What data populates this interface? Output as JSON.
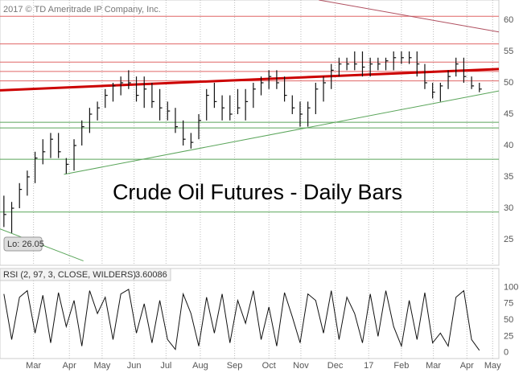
{
  "chart_data": [
    {
      "type": "ohlc",
      "title": "Crude Oil Futures - Daily Bars",
      "copyright": "2017 © TD Ameritrade IP Company, Inc.",
      "low_label": "Lo: 26.05",
      "color": "#111111",
      "xlim": [
        -0.5,
        63.5
      ],
      "ylim": [
        20.9,
        63.2
      ],
      "yticks": [
        25,
        30,
        35,
        40,
        45,
        50,
        55,
        60
      ],
      "grid": true,
      "high": [
        32,
        31,
        34,
        36,
        39,
        41,
        42,
        42,
        38,
        41,
        44,
        46,
        47,
        49,
        50,
        51,
        52,
        51,
        51,
        50,
        49,
        47,
        46,
        44,
        42,
        45,
        49,
        50,
        48,
        48,
        49,
        49,
        50,
        51,
        52,
        52,
        51,
        48,
        47,
        47,
        50,
        51,
        53,
        54,
        54,
        55,
        55,
        54,
        54,
        54,
        55,
        55,
        55,
        55,
        53,
        50,
        50,
        52,
        54,
        54,
        51,
        50
      ],
      "low": [
        27,
        26.05,
        30,
        32,
        34,
        37,
        38,
        38,
        35.5,
        36,
        40,
        42,
        44,
        46,
        47,
        48,
        49,
        47,
        46,
        46,
        44,
        44,
        42,
        40,
        39.5,
        41,
        44,
        46,
        44,
        44,
        45,
        44,
        46,
        48,
        49,
        49,
        47,
        45,
        43,
        43,
        45,
        47,
        49,
        51,
        52,
        52,
        51,
        51,
        52,
        52,
        52,
        53,
        53,
        51,
        49,
        47.5,
        47,
        49,
        51,
        50,
        49,
        48.5
      ],
      "close": [
        29,
        30,
        33,
        35,
        38,
        39,
        41,
        39,
        37,
        40,
        43,
        45,
        46,
        48,
        49.5,
        50,
        50,
        48,
        49,
        47,
        46,
        45.5,
        43,
        41,
        40.5,
        44,
        48,
        47,
        46,
        45,
        46,
        47,
        49,
        50,
        51,
        50,
        48,
        46,
        45,
        46,
        49,
        50,
        52,
        53,
        53,
        53,
        52.5,
        53,
        53,
        53.5,
        54,
        54,
        54,
        53,
        50,
        48.5,
        49.5,
        51,
        53,
        51,
        49.5,
        49
      ],
      "levels": [
        {
          "value": 60.6,
          "color": "#e06666"
        },
        {
          "value": 56.2,
          "color": "#e06666"
        },
        {
          "value": 53.3,
          "color": "#e06666"
        },
        {
          "value": 51.8,
          "color": "#e06666"
        },
        {
          "value": 50.3,
          "color": "#e06666"
        },
        {
          "value": 43.7,
          "color": "#5aa55a"
        },
        {
          "value": 42.8,
          "color": "#5aa55a"
        },
        {
          "value": 37.8,
          "color": "#5aa55a"
        },
        {
          "value": 29.4,
          "color": "#5aa55a"
        }
      ],
      "trendlines": [
        {
          "x": [
            -0.5,
            63.5
          ],
          "y": [
            48.8,
            52.2
          ],
          "color": "#cc0000",
          "width": 3
        },
        {
          "x": [
            40.4,
            63.5
          ],
          "y": [
            63.2,
            58.1
          ],
          "color": "#b05060",
          "width": 1
        },
        {
          "x": [
            7.7,
            63.5
          ],
          "y": [
            35.4,
            48.7
          ],
          "color": "#5aa55a",
          "width": 1
        },
        {
          "x": [
            -0.5,
            10.2
          ],
          "y": [
            26.7,
            21.6
          ],
          "color": "#5aa55a",
          "width": 1
        }
      ]
    },
    {
      "type": "line",
      "title": "RSI (2, 97, 3, CLOSE, WILDERS)",
      "readout": "3.60086",
      "color": "#111111",
      "xlim": [
        -0.5,
        63.5
      ],
      "ylim": [
        -9,
        129
      ],
      "yticks": [
        0,
        25,
        50,
        75,
        100
      ],
      "xticks": [
        {
          "value": 3.8,
          "label": "Mar"
        },
        {
          "value": 8.4,
          "label": "Apr"
        },
        {
          "value": 12.6,
          "label": "May"
        },
        {
          "value": 16.7,
          "label": "Jun"
        },
        {
          "value": 20.8,
          "label": "Jul"
        },
        {
          "value": 25.2,
          "label": "Aug"
        },
        {
          "value": 29.6,
          "label": "Sep"
        },
        {
          "value": 34,
          "label": "Oct"
        },
        {
          "value": 38.1,
          "label": "Nov"
        },
        {
          "value": 42.5,
          "label": "Dec"
        },
        {
          "value": 46.8,
          "label": "17"
        },
        {
          "value": 51,
          "label": "Feb"
        },
        {
          "value": 55.1,
          "label": "Mar"
        },
        {
          "value": 59.4,
          "label": "Apr"
        },
        {
          "value": 62.7,
          "label": "May"
        }
      ],
      "values": [
        90,
        20,
        85,
        95,
        30,
        88,
        15,
        92,
        40,
        80,
        10,
        95,
        60,
        85,
        20,
        90,
        97,
        30,
        75,
        15,
        80,
        20,
        5,
        90,
        60,
        10,
        85,
        30,
        90,
        15,
        80,
        45,
        95,
        20,
        70,
        10,
        92,
        55,
        15,
        90,
        80,
        30,
        95,
        20,
        85,
        60,
        15,
        90,
        25,
        95,
        40,
        10,
        80,
        20,
        92,
        15,
        30,
        10,
        85,
        95,
        20,
        3.60086
      ]
    }
  ]
}
